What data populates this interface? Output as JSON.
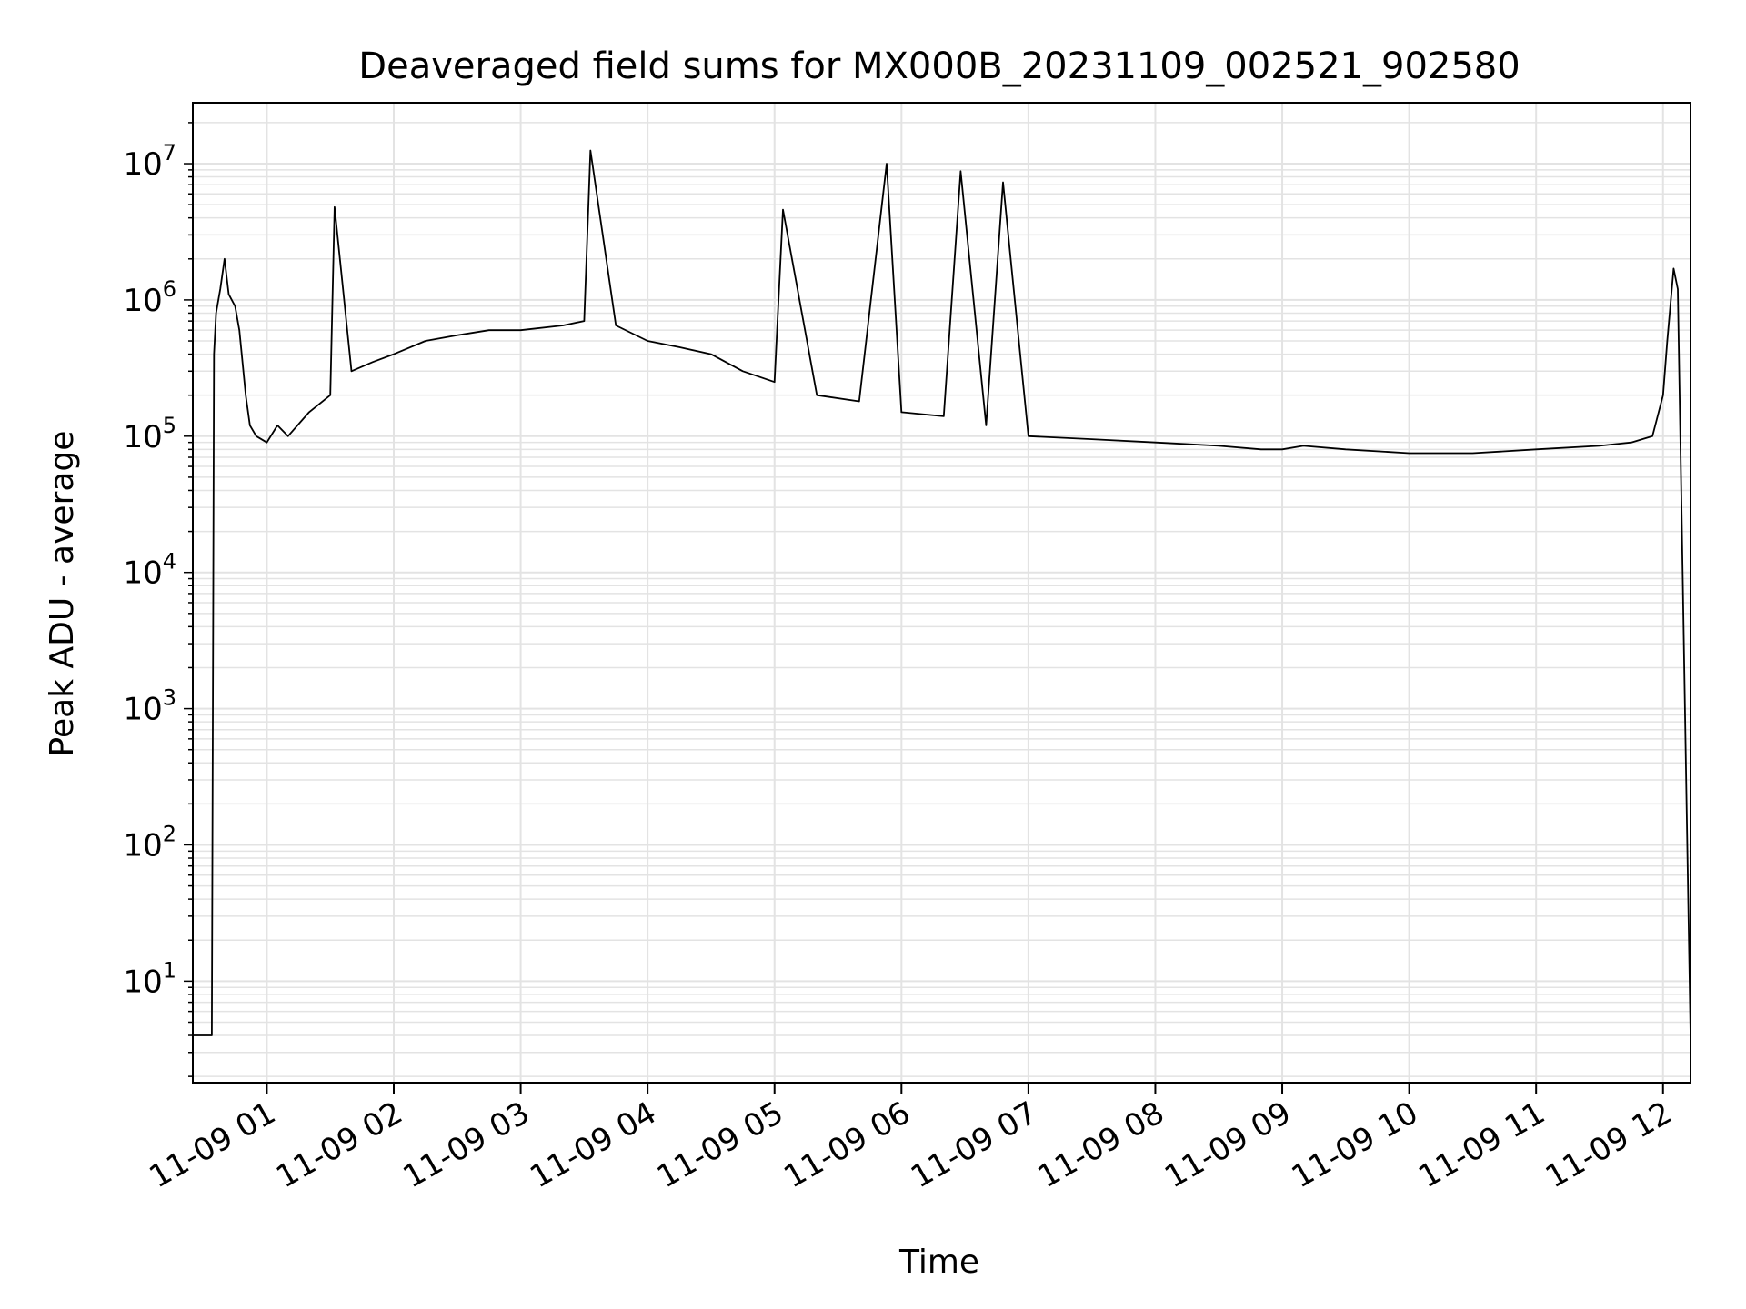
{
  "chart_data": {
    "type": "line",
    "title": "Deaveraged field sums for MX000B_20231109_002521_902580",
    "xlabel": "Time",
    "ylabel": "Peak ADU - average",
    "yscale": "log",
    "ylim": [
      1.8,
      28000000
    ],
    "xlim": [
      "2023-11-09 00:25",
      "2023-11-09 12:13"
    ],
    "grid": true,
    "line_color": "#000000",
    "grid_color": "#e3e3e3",
    "x_ticks": [
      {
        "label": "11-09 01",
        "value": "2023-11-09 01:00"
      },
      {
        "label": "11-09 02",
        "value": "2023-11-09 02:00"
      },
      {
        "label": "11-09 03",
        "value": "2023-11-09 03:00"
      },
      {
        "label": "11-09 04",
        "value": "2023-11-09 04:00"
      },
      {
        "label": "11-09 05",
        "value": "2023-11-09 05:00"
      },
      {
        "label": "11-09 06",
        "value": "2023-11-09 06:00"
      },
      {
        "label": "11-09 07",
        "value": "2023-11-09 07:00"
      },
      {
        "label": "11-09 08",
        "value": "2023-11-09 08:00"
      },
      {
        "label": "11-09 09",
        "value": "2023-11-09 09:00"
      },
      {
        "label": "11-09 10",
        "value": "2023-11-09 10:00"
      },
      {
        "label": "11-09 11",
        "value": "2023-11-09 11:00"
      },
      {
        "label": "11-09 12",
        "value": "2023-11-09 12:00"
      }
    ],
    "y_ticks": [
      {
        "base": "10",
        "exp": "1",
        "value": 10
      },
      {
        "base": "10",
        "exp": "2",
        "value": 100
      },
      {
        "base": "10",
        "exp": "3",
        "value": 1000
      },
      {
        "base": "10",
        "exp": "4",
        "value": 10000
      },
      {
        "base": "10",
        "exp": "5",
        "value": 100000
      },
      {
        "base": "10",
        "exp": "6",
        "value": 1000000
      },
      {
        "base": "10",
        "exp": "7",
        "value": 10000000
      }
    ],
    "series": [
      {
        "x": [
          "2023-11-09 00:25",
          "2023-11-09 00:34",
          "2023-11-09 00:35",
          "2023-11-09 00:36",
          "2023-11-09 00:38",
          "2023-11-09 00:40",
          "2023-11-09 00:42",
          "2023-11-09 00:45",
          "2023-11-09 00:47",
          "2023-11-09 00:50",
          "2023-11-09 00:52",
          "2023-11-09 00:55",
          "2023-11-09 01:00",
          "2023-11-09 01:05",
          "2023-11-09 01:10",
          "2023-11-09 01:20",
          "2023-11-09 01:30",
          "2023-11-09 01:32",
          "2023-11-09 01:40",
          "2023-11-09 01:50",
          "2023-11-09 02:00",
          "2023-11-09 02:15",
          "2023-11-09 02:30",
          "2023-11-09 02:45",
          "2023-11-09 03:00",
          "2023-11-09 03:20",
          "2023-11-09 03:30",
          "2023-11-09 03:33",
          "2023-11-09 03:45",
          "2023-11-09 04:00",
          "2023-11-09 04:15",
          "2023-11-09 04:30",
          "2023-11-09 04:45",
          "2023-11-09 05:00",
          "2023-11-09 05:04",
          "2023-11-09 05:20",
          "2023-11-09 05:40",
          "2023-11-09 05:53",
          "2023-11-09 06:00",
          "2023-11-09 06:20",
          "2023-11-09 06:28",
          "2023-11-09 06:40",
          "2023-11-09 06:48",
          "2023-11-09 07:00",
          "2023-11-09 07:30",
          "2023-11-09 08:00",
          "2023-11-09 08:30",
          "2023-11-09 08:50",
          "2023-11-09 09:00",
          "2023-11-09 09:10",
          "2023-11-09 09:30",
          "2023-11-09 10:00",
          "2023-11-09 10:30",
          "2023-11-09 11:00",
          "2023-11-09 11:30",
          "2023-11-09 11:45",
          "2023-11-09 11:55",
          "2023-11-09 12:00",
          "2023-11-09 12:02",
          "2023-11-09 12:05",
          "2023-11-09 12:07",
          "2023-11-09 12:13"
        ],
        "y": [
          4,
          4,
          400000,
          800000,
          1200000,
          2000000,
          1100000,
          900000,
          600000,
          200000,
          120000,
          100000,
          90000,
          120000,
          100000,
          150000,
          200000,
          4800000,
          300000,
          350000,
          400000,
          500000,
          550000,
          600000,
          600000,
          650000,
          700000,
          12500000,
          650000,
          500000,
          450000,
          400000,
          300000,
          250000,
          4600000,
          200000,
          180000,
          10000000,
          150000,
          140000,
          8800000,
          120000,
          7300000,
          100000,
          95000,
          90000,
          85000,
          80000,
          80000,
          85000,
          80000,
          75000,
          75000,
          80000,
          85000,
          90000,
          100000,
          200000,
          500000,
          1700000,
          1200000,
          4
        ]
      }
    ]
  }
}
